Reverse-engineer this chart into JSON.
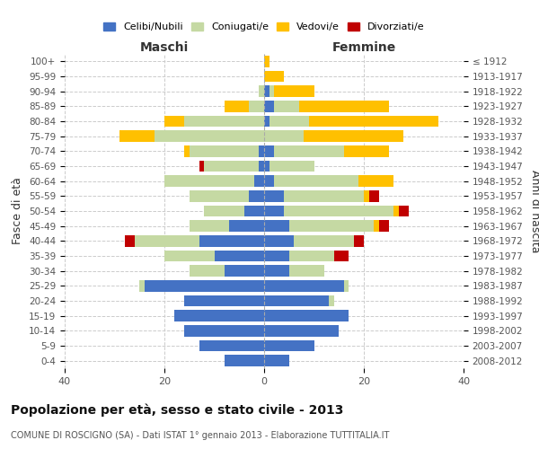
{
  "age_groups": [
    "0-4",
    "5-9",
    "10-14",
    "15-19",
    "20-24",
    "25-29",
    "30-34",
    "35-39",
    "40-44",
    "45-49",
    "50-54",
    "55-59",
    "60-64",
    "65-69",
    "70-74",
    "75-79",
    "80-84",
    "85-89",
    "90-94",
    "95-99",
    "100+"
  ],
  "birth_years": [
    "2008-2012",
    "2003-2007",
    "1998-2002",
    "1993-1997",
    "1988-1992",
    "1983-1987",
    "1978-1982",
    "1973-1977",
    "1968-1972",
    "1963-1967",
    "1958-1962",
    "1953-1957",
    "1948-1952",
    "1943-1947",
    "1938-1942",
    "1933-1937",
    "1928-1932",
    "1923-1927",
    "1918-1922",
    "1913-1917",
    "≤ 1912"
  ],
  "colors": {
    "celibi": "#4472c4",
    "coniugati": "#c5d9a3",
    "vedovi": "#ffc000",
    "divorziati": "#c00000"
  },
  "maschi": {
    "celibi": [
      8,
      13,
      16,
      18,
      16,
      24,
      8,
      10,
      13,
      7,
      4,
      3,
      2,
      1,
      1,
      0,
      0,
      0,
      0,
      0,
      0
    ],
    "coniugati": [
      0,
      0,
      0,
      0,
      0,
      1,
      7,
      10,
      13,
      8,
      8,
      12,
      18,
      11,
      14,
      22,
      16,
      3,
      1,
      0,
      0
    ],
    "vedovi": [
      0,
      0,
      0,
      0,
      0,
      0,
      0,
      0,
      0,
      0,
      0,
      0,
      0,
      0,
      1,
      7,
      4,
      5,
      0,
      0,
      0
    ],
    "divorziati": [
      0,
      0,
      0,
      0,
      0,
      0,
      0,
      0,
      2,
      0,
      0,
      0,
      0,
      1,
      0,
      0,
      0,
      0,
      0,
      0,
      0
    ]
  },
  "femmine": {
    "celibi": [
      5,
      10,
      15,
      17,
      13,
      16,
      5,
      5,
      6,
      5,
      4,
      4,
      2,
      1,
      2,
      0,
      1,
      2,
      1,
      0,
      0
    ],
    "coniugati": [
      0,
      0,
      0,
      0,
      1,
      1,
      7,
      9,
      12,
      17,
      22,
      16,
      17,
      9,
      14,
      8,
      8,
      5,
      1,
      0,
      0
    ],
    "vedovi": [
      0,
      0,
      0,
      0,
      0,
      0,
      0,
      0,
      0,
      1,
      1,
      1,
      7,
      0,
      9,
      20,
      26,
      18,
      8,
      4,
      1
    ],
    "divorziati": [
      0,
      0,
      0,
      0,
      0,
      0,
      0,
      3,
      2,
      2,
      2,
      2,
      0,
      0,
      0,
      0,
      0,
      0,
      0,
      0,
      0
    ]
  },
  "xlim": 40,
  "title": "Popolazione per età, sesso e stato civile - 2013",
  "subtitle": "COMUNE DI ROSCIGNO (SA) - Dati ISTAT 1° gennaio 2013 - Elaborazione TUTTITALIA.IT",
  "ylabel": "Fasce di età",
  "ylabel2": "Anni di nascita",
  "xlabel_left": "Maschi",
  "xlabel_right": "Femmine"
}
